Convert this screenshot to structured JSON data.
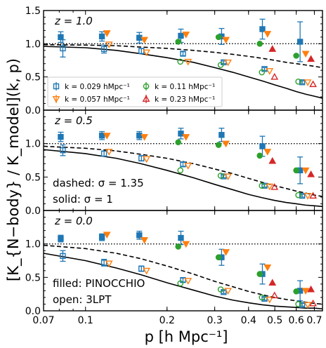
{
  "chart_data": {
    "type": "scatter",
    "x_axis": {
      "label": "p [h Mpc⁻¹]",
      "scale": "log",
      "range": [
        0.07,
        0.75
      ],
      "major_ticks": [
        0.07,
        0.1,
        0.2,
        0.3,
        0.4,
        0.5,
        0.6,
        0.7
      ],
      "tick_labels": [
        "0.07",
        "0.1",
        "0.2",
        "0.3",
        "0.4",
        "0.5",
        "0.6",
        "0.7"
      ]
    },
    "y_axis": {
      "label": "[K_{N−body} / K_model](k, p)",
      "range": [
        0,
        1.5
      ],
      "ticks": [
        0.0,
        0.5,
        1.0,
        1.5
      ],
      "tick_labels": [
        "0.0",
        "0.5",
        "1.0",
        "1.5"
      ]
    },
    "reference_line": {
      "y": 1.0,
      "style": "dotted"
    },
    "series_styles": [
      {
        "name": "k = 0.029 hMpc⁻¹",
        "color": "#1f77b4",
        "marker": "square"
      },
      {
        "name": "k = 0.057 hMpc⁻¹",
        "color": "#ff7f0e",
        "marker": "triangle-down"
      },
      {
        "name": "k = 0.11 hMpc⁻¹",
        "color": "#2ca02c",
        "marker": "circle"
      },
      {
        "name": "k = 0.23 hMpc⁻¹",
        "color": "#d62728",
        "marker": "triangle-up"
      }
    ],
    "legend": {
      "location": "panel 1, lower-left",
      "entries": [
        {
          "label": "k = 0.029 hMpc⁻¹",
          "series": 0
        },
        {
          "label": "k = 0.057 hMpc⁻¹",
          "series": 1
        },
        {
          "label": "k = 0.11 hMpc⁻¹",
          "series": 2
        },
        {
          "label": "k = 0.23 hMpc⁻¹",
          "series": 3
        }
      ]
    },
    "panels": [
      {
        "label": "z = 1.0",
        "annotations": [],
        "curves": {
          "solid": {
            "x": [
              0.07,
              0.1,
              0.13,
              0.16,
              0.2,
              0.25,
              0.3,
              0.35,
              0.4,
              0.45,
              0.5,
              0.55,
              0.6,
              0.65,
              0.7,
              0.75
            ],
            "y": [
              0.96,
              0.94,
              0.9,
              0.85,
              0.79,
              0.72,
              0.64,
              0.57,
              0.5,
              0.44,
              0.38,
              0.33,
              0.28,
              0.24,
              0.21,
              0.18
            ]
          },
          "dashed": {
            "x": [
              0.07,
              0.1,
              0.13,
              0.16,
              0.2,
              0.25,
              0.3,
              0.35,
              0.4,
              0.45,
              0.5,
              0.55,
              0.6,
              0.65,
              0.7,
              0.75
            ],
            "y": [
              0.985,
              0.98,
              0.97,
              0.95,
              0.93,
              0.9,
              0.87,
              0.84,
              0.81,
              0.78,
              0.75,
              0.72,
              0.7,
              0.68,
              0.66,
              0.64
            ]
          }
        },
        "filled": [
          {
            "series": 0,
            "x": [
              0.081,
              0.115,
              0.158,
              0.225,
              0.318,
              0.45,
              0.62
            ],
            "y": [
              1.1,
              1.11,
              1.09,
              1.12,
              1.11,
              1.22,
              1.03
            ],
            "err": [
              0.08,
              0.07,
              0.08,
              0.1,
              0.12,
              0.15,
              0.3
            ]
          },
          {
            "series": 1,
            "x": [
              0.12,
              0.165,
              0.235,
              0.33,
              0.47,
              0.65
            ],
            "y": [
              1.16,
              1.06,
              1.14,
              1.06,
              1.15,
              0.85
            ]
          },
          {
            "series": 2,
            "x": [
              0.22,
              0.31,
              0.44,
              0.6
            ],
            "y": [
              1.03,
              1.1,
              1.0,
              0.82
            ]
          },
          {
            "series": 3,
            "x": [
              0.49,
              0.68
            ],
            "y": [
              0.92,
              0.77
            ]
          }
        ],
        "open": [
          {
            "series": 0,
            "x": [
              0.081,
              0.115,
              0.158,
              0.225,
              0.318,
              0.45,
              0.62
            ],
            "y": [
              0.93,
              0.92,
              0.89,
              0.85,
              0.72,
              0.62,
              0.42
            ],
            "err": [
              0.13,
              0.06,
              0.04,
              0.03,
              0.02,
              0.02,
              0.02
            ]
          },
          {
            "series": 1,
            "x": [
              0.12,
              0.165,
              0.235,
              0.33,
              0.47,
              0.65
            ],
            "y": [
              0.99,
              0.87,
              0.73,
              0.72,
              0.59,
              0.42
            ]
          },
          {
            "series": 2,
            "x": [
              0.22,
              0.31,
              0.44,
              0.6
            ],
            "y": [
              0.73,
              0.68,
              0.57,
              0.43
            ]
          },
          {
            "series": 3,
            "x": [
              0.49,
              0.68
            ],
            "y": [
              0.5,
              0.39
            ]
          }
        ]
      },
      {
        "label": "z = 0.5",
        "annotations": [
          "dashed: σ = 1.35",
          "solid: σ = 1"
        ],
        "curves": {
          "solid": {
            "x": [
              0.07,
              0.1,
              0.13,
              0.16,
              0.2,
              0.25,
              0.3,
              0.35,
              0.4,
              0.45,
              0.5,
              0.55,
              0.6,
              0.65,
              0.7,
              0.75
            ],
            "y": [
              0.91,
              0.85,
              0.78,
              0.7,
              0.6,
              0.49,
              0.39,
              0.31,
              0.24,
              0.19,
              0.15,
              0.12,
              0.1,
              0.08,
              0.07,
              0.06
            ]
          },
          "dashed": {
            "x": [
              0.07,
              0.1,
              0.13,
              0.16,
              0.2,
              0.25,
              0.3,
              0.35,
              0.4,
              0.45,
              0.5,
              0.55,
              0.6,
              0.65,
              0.7,
              0.75
            ],
            "y": [
              0.96,
              0.93,
              0.89,
              0.84,
              0.78,
              0.7,
              0.62,
              0.55,
              0.48,
              0.42,
              0.37,
              0.33,
              0.29,
              0.26,
              0.23,
              0.21
            ]
          }
        },
        "filled": [
          {
            "series": 0,
            "x": [
              0.081,
              0.115,
              0.158,
              0.225,
              0.318,
              0.45,
              0.62
            ],
            "y": [
              1.1,
              1.12,
              1.12,
              1.15,
              1.13,
              0.96,
              0.6
            ],
            "err": [
              0.07,
              0.06,
              0.06,
              0.08,
              0.1,
              0.15,
              0.2
            ]
          },
          {
            "series": 1,
            "x": [
              0.12,
              0.165,
              0.235,
              0.33,
              0.47,
              0.65
            ],
            "y": [
              1.12,
              1.1,
              1.1,
              1.0,
              0.88,
              0.6
            ]
          },
          {
            "series": 2,
            "x": [
              0.22,
              0.31,
              0.44,
              0.6
            ],
            "y": [
              1.02,
              0.98,
              0.82,
              0.6
            ]
          },
          {
            "series": 3,
            "x": [
              0.49,
              0.68
            ],
            "y": [
              0.74,
              0.54
            ]
          }
        ],
        "open": [
          {
            "series": 0,
            "x": [
              0.081,
              0.115,
              0.158,
              0.225,
              0.318,
              0.45,
              0.62
            ],
            "y": [
              0.9,
              0.85,
              0.78,
              0.69,
              0.51,
              0.37,
              0.22
            ],
            "err": [
              0.08,
              0.04,
              0.04,
              0.03,
              0.02,
              0.02,
              0.02
            ]
          },
          {
            "series": 1,
            "x": [
              0.12,
              0.165,
              0.235,
              0.33,
              0.47,
              0.65
            ],
            "y": [
              0.88,
              0.77,
              0.67,
              0.51,
              0.36,
              0.22
            ]
          },
          {
            "series": 2,
            "x": [
              0.22,
              0.31,
              0.44,
              0.6
            ],
            "y": [
              0.6,
              0.52,
              0.37,
              0.23
            ]
          },
          {
            "series": 3,
            "x": [
              0.49,
              0.68
            ],
            "y": [
              0.35,
              0.22
            ]
          }
        ]
      },
      {
        "label": "z = 0.0",
        "annotations": [
          "filled: PINOCCHIO",
          "open: 3LPT"
        ],
        "curves": {
          "solid": {
            "x": [
              0.07,
              0.1,
              0.13,
              0.16,
              0.2,
              0.25,
              0.3,
              0.35,
              0.4,
              0.45,
              0.5,
              0.55,
              0.6,
              0.65,
              0.7,
              0.75
            ],
            "y": [
              0.86,
              0.75,
              0.64,
              0.54,
              0.42,
              0.31,
              0.22,
              0.16,
              0.12,
              0.09,
              0.07,
              0.06,
              0.05,
              0.04,
              0.04,
              0.03
            ]
          },
          "dashed": {
            "x": [
              0.07,
              0.1,
              0.13,
              0.16,
              0.2,
              0.25,
              0.3,
              0.35,
              0.4,
              0.45,
              0.5,
              0.55,
              0.6,
              0.65,
              0.7,
              0.75
            ],
            "y": [
              0.98,
              0.93,
              0.86,
              0.78,
              0.67,
              0.55,
              0.44,
              0.36,
              0.29,
              0.24,
              0.2,
              0.17,
              0.15,
              0.13,
              0.11,
              0.1
            ]
          }
        },
        "filled": [
          {
            "series": 0,
            "x": [
              0.081,
              0.115,
              0.158,
              0.225,
              0.318,
              0.45,
              0.62
            ],
            "y": [
              1.08,
              1.1,
              1.13,
              1.09,
              0.8,
              0.55,
              0.3
            ],
            "err": [
              0.05,
              0.05,
              0.06,
              0.1,
              0.12,
              0.15,
              0.15
            ]
          },
          {
            "series": 1,
            "x": [
              0.12,
              0.165,
              0.235,
              0.33,
              0.47,
              0.65
            ],
            "y": [
              1.14,
              1.06,
              1.0,
              0.88,
              0.65,
              0.3
            ]
          },
          {
            "series": 2,
            "x": [
              0.22,
              0.31,
              0.44,
              0.6
            ],
            "y": [
              0.96,
              0.8,
              0.55,
              0.29
            ]
          },
          {
            "series": 3,
            "x": [
              0.49,
              0.68
            ],
            "y": [
              0.42,
              0.32
            ]
          }
        ],
        "open": [
          {
            "series": 0,
            "x": [
              0.081,
              0.115,
              0.158,
              0.225,
              0.318,
              0.45,
              0.62
            ],
            "y": [
              0.82,
              0.72,
              0.63,
              0.46,
              0.28,
              0.18,
              0.09
            ],
            "err": [
              0.08,
              0.05,
              0.04,
              0.03,
              0.02,
              0.02,
              0.02
            ]
          },
          {
            "series": 1,
            "x": [
              0.12,
              0.165,
              0.235,
              0.33,
              0.47,
              0.65
            ],
            "y": [
              0.71,
              0.6,
              0.45,
              0.3,
              0.17,
              0.09
            ]
          },
          {
            "series": 2,
            "x": [
              0.22,
              0.31,
              0.44,
              0.6
            ],
            "y": [
              0.41,
              0.32,
              0.2,
              0.1
            ]
          },
          {
            "series": 3,
            "x": [
              0.49,
              0.68
            ],
            "y": [
              0.23,
              0.11
            ]
          }
        ]
      }
    ]
  }
}
